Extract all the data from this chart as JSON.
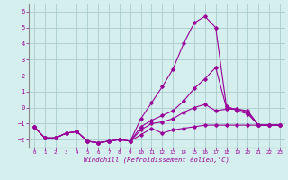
{
  "xlabel": "Windchill (Refroidissement éolien,°C)",
  "background_color": "#d4efed",
  "grid_color": "#aacccc",
  "line_color": "#990099",
  "x_hours": [
    0,
    1,
    2,
    3,
    4,
    5,
    6,
    7,
    8,
    9,
    10,
    11,
    12,
    13,
    14,
    15,
    16,
    17,
    18,
    19,
    20,
    21,
    22,
    23
  ],
  "y_windchill": [
    -1.2,
    -1.9,
    -1.9,
    -1.6,
    -1.5,
    -2.1,
    -2.2,
    -2.1,
    -2.0,
    -2.1,
    -1.7,
    -1.3,
    -1.6,
    -1.4,
    -1.3,
    -1.2,
    -1.1,
    -1.1,
    -1.1,
    -1.1,
    -1.1,
    -1.1,
    -1.1,
    -1.1
  ],
  "y_temp": [
    -1.2,
    -1.9,
    -1.9,
    -1.6,
    -1.5,
    -2.1,
    -2.2,
    -2.1,
    -2.0,
    -2.1,
    -0.7,
    0.3,
    1.3,
    2.4,
    4.0,
    5.3,
    5.7,
    5.0,
    0.1,
    -0.2,
    -0.4,
    -1.1,
    -1.1,
    -1.1
  ],
  "y_line3": [
    -1.2,
    -1.9,
    -1.9,
    -1.6,
    -1.5,
    -2.1,
    -2.2,
    -2.1,
    -2.0,
    -2.1,
    -1.2,
    -0.8,
    -0.5,
    -0.2,
    0.4,
    1.2,
    1.8,
    2.5,
    0.0,
    -0.1,
    -0.3,
    -1.1,
    -1.1,
    -1.1
  ],
  "y_line4": [
    -1.2,
    -1.9,
    -1.9,
    -1.6,
    -1.5,
    -2.1,
    -2.2,
    -2.1,
    -2.0,
    -2.1,
    -1.4,
    -1.0,
    -0.9,
    -0.7,
    -0.3,
    0.0,
    0.2,
    -0.2,
    -0.1,
    -0.1,
    -0.2,
    -1.1,
    -1.1,
    -1.1
  ],
  "ylim": [
    -2.5,
    6.5
  ],
  "yticks": [
    -2,
    -1,
    0,
    1,
    2,
    3,
    4,
    5,
    6
  ],
  "xlim": [
    -0.5,
    23.5
  ],
  "xticks": [
    0,
    1,
    2,
    3,
    4,
    5,
    6,
    7,
    8,
    9,
    10,
    11,
    12,
    13,
    14,
    15,
    16,
    17,
    18,
    19,
    20,
    21,
    22,
    23
  ]
}
